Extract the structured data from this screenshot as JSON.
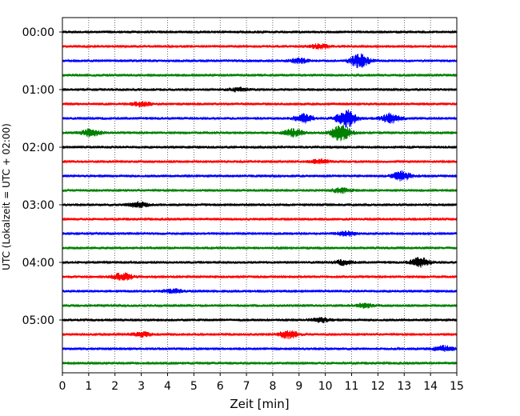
{
  "chart_data": {
    "type": "line",
    "title": "",
    "xlabel": "Zeit  [min]",
    "ylabel": "UTC (Lokalzeit = UTC + 02:00)",
    "xlim": [
      0,
      15
    ],
    "x_ticks": [
      "0",
      "1",
      "2",
      "3",
      "4",
      "5",
      "6",
      "7",
      "8",
      "9",
      "10",
      "11",
      "12",
      "13",
      "14",
      "15"
    ],
    "y_tick_labels": [
      "00:00",
      "01:00",
      "02:00",
      "03:00",
      "04:00",
      "05:00"
    ],
    "rows_per_hour": 4,
    "minutes_per_row": 15,
    "grid": "vertical dotted at each minute",
    "series_colors": [
      "#000000",
      "#ff0000",
      "#0000ff",
      "#008000"
    ],
    "traces": [
      {
        "start": "00:00",
        "color": "#000000",
        "bursts": []
      },
      {
        "start": "00:15",
        "color": "#ff0000",
        "bursts": [
          {
            "x": 9.8,
            "amp": 0.6
          }
        ]
      },
      {
        "start": "00:30",
        "color": "#0000ff",
        "bursts": [
          {
            "x": 11.3,
            "amp": 1.8
          },
          {
            "x": 9.0,
            "amp": 0.6
          }
        ]
      },
      {
        "start": "00:45",
        "color": "#008000",
        "bursts": []
      },
      {
        "start": "01:00",
        "color": "#000000",
        "bursts": [
          {
            "x": 6.7,
            "amp": 0.5
          }
        ]
      },
      {
        "start": "01:15",
        "color": "#ff0000",
        "bursts": [
          {
            "x": 3.0,
            "amp": 0.6
          }
        ]
      },
      {
        "start": "01:30",
        "color": "#0000ff",
        "bursts": [
          {
            "x": 10.8,
            "amp": 2.5
          },
          {
            "x": 9.2,
            "amp": 1.2
          },
          {
            "x": 12.5,
            "amp": 1.3
          }
        ]
      },
      {
        "start": "01:45",
        "color": "#008000",
        "bursts": [
          {
            "x": 10.6,
            "amp": 2.2
          },
          {
            "x": 1.1,
            "amp": 1.0
          },
          {
            "x": 8.8,
            "amp": 1.0
          }
        ]
      },
      {
        "start": "02:00",
        "color": "#000000",
        "bursts": []
      },
      {
        "start": "02:15",
        "color": "#ff0000",
        "bursts": [
          {
            "x": 9.8,
            "amp": 0.5
          }
        ]
      },
      {
        "start": "02:30",
        "color": "#0000ff",
        "bursts": [
          {
            "x": 12.9,
            "amp": 1.2
          }
        ]
      },
      {
        "start": "02:45",
        "color": "#008000",
        "bursts": [
          {
            "x": 10.6,
            "amp": 0.6
          }
        ]
      },
      {
        "start": "03:00",
        "color": "#000000",
        "bursts": [
          {
            "x": 2.9,
            "amp": 0.7
          }
        ]
      },
      {
        "start": "03:15",
        "color": "#ff0000",
        "bursts": []
      },
      {
        "start": "03:30",
        "color": "#0000ff",
        "bursts": [
          {
            "x": 10.8,
            "amp": 0.6
          }
        ]
      },
      {
        "start": "03:45",
        "color": "#008000",
        "bursts": []
      },
      {
        "start": "04:00",
        "color": "#000000",
        "bursts": [
          {
            "x": 13.6,
            "amp": 1.2
          },
          {
            "x": 10.7,
            "amp": 0.6
          }
        ]
      },
      {
        "start": "04:15",
        "color": "#ff0000",
        "bursts": [
          {
            "x": 2.3,
            "amp": 1.0
          }
        ]
      },
      {
        "start": "04:30",
        "color": "#0000ff",
        "bursts": [
          {
            "x": 4.2,
            "amp": 0.5
          }
        ]
      },
      {
        "start": "04:45",
        "color": "#008000",
        "bursts": [
          {
            "x": 11.5,
            "amp": 0.5
          }
        ]
      },
      {
        "start": "05:00",
        "color": "#000000",
        "bursts": [
          {
            "x": 9.8,
            "amp": 0.6
          }
        ]
      },
      {
        "start": "05:15",
        "color": "#ff0000",
        "bursts": [
          {
            "x": 8.6,
            "amp": 1.0
          },
          {
            "x": 3.0,
            "amp": 0.6
          }
        ]
      },
      {
        "start": "05:30",
        "color": "#0000ff",
        "bursts": [
          {
            "x": 14.5,
            "amp": 0.7
          }
        ]
      },
      {
        "start": "05:45",
        "color": "#008000",
        "bursts": []
      }
    ]
  }
}
